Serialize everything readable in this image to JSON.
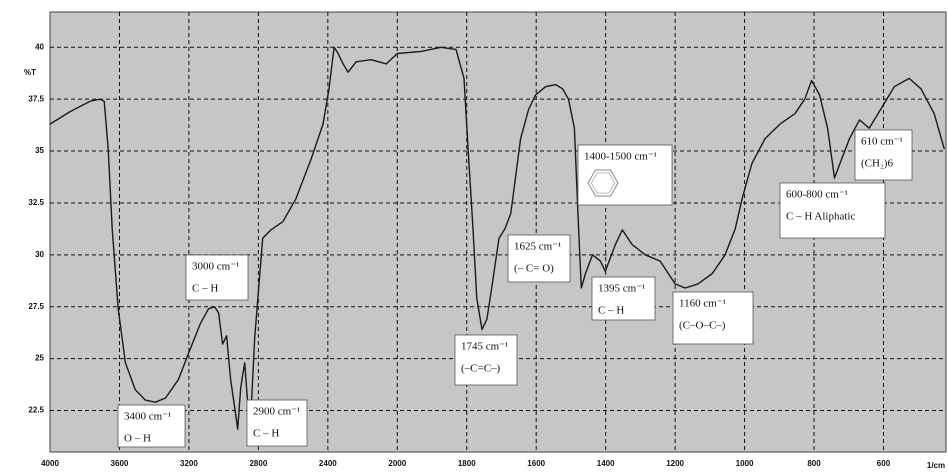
{
  "chart_data": {
    "type": "line",
    "y_label": "%T",
    "x_label": "1/cm",
    "color": "#1a1a1a",
    "grid": true,
    "xlim": [
      4000,
      420
    ],
    "ylim": [
      20.5,
      41.7
    ],
    "xticks": [
      4000,
      3600,
      3200,
      2800,
      2400,
      2000,
      1800,
      1600,
      1400,
      1200,
      1000,
      800,
      600
    ],
    "yticks": [
      22.5,
      25,
      27.5,
      30,
      32.5,
      35,
      37.5,
      40
    ],
    "x": [
      4000,
      3884,
      3769,
      3711,
      3688,
      3665,
      3642,
      3607,
      3566,
      3509,
      3451,
      3393,
      3335,
      3260,
      3191,
      3133,
      3087,
      3052,
      3029,
      3006,
      2983,
      2960,
      2936,
      2919,
      2902,
      2879,
      2861,
      2844,
      2821,
      2798,
      2775,
      2728,
      2659,
      2584,
      2497,
      2428,
      2393,
      2364,
      2341,
      2312,
      2283,
      2237,
      2150,
      2064,
      2000,
      1931,
      1874,
      1831,
      1808,
      1796,
      1782,
      1771,
      1756,
      1742,
      1728,
      1707,
      1690,
      1673,
      1645,
      1622,
      1602,
      1573,
      1544,
      1524,
      1507,
      1490,
      1478,
      1470,
      1458,
      1438,
      1415,
      1401,
      1390,
      1372,
      1352,
      1324,
      1286,
      1243,
      1200,
      1171,
      1134,
      1093,
      1056,
      1027,
      1007,
      979,
      941,
      898,
      855,
      827,
      807,
      784,
      761,
      741,
      721,
      698,
      669,
      641,
      612,
      569,
      526,
      492,
      454,
      425
    ],
    "values": [
      36.3,
      36.9,
      37.4,
      37.5,
      37.4,
      35.1,
      31.25,
      27.4,
      24.8,
      23.5,
      23.0,
      22.9,
      23.1,
      24.0,
      25.5,
      26.7,
      27.4,
      27.5,
      27.2,
      25.7,
      26.1,
      24.0,
      22.6,
      21.6,
      23.6,
      24.8,
      22.8,
      22.1,
      26.0,
      28.4,
      30.8,
      31.2,
      31.6,
      32.7,
      34.6,
      36.3,
      38.0,
      40.0,
      39.7,
      39.2,
      38.8,
      39.3,
      39.4,
      39.2,
      39.7,
      39.8,
      40.0,
      39.9,
      38.5,
      35.1,
      31.25,
      27.9,
      26.4,
      26.9,
      28.4,
      30.8,
      31.25,
      32.0,
      35.6,
      37.0,
      37.7,
      38.1,
      38.2,
      38.0,
      37.5,
      36.1,
      31.25,
      28.4,
      29.1,
      30.0,
      29.7,
      29.2,
      29.7,
      30.5,
      31.2,
      30.5,
      30.0,
      29.7,
      28.6,
      28.4,
      28.6,
      29.1,
      30.0,
      31.25,
      32.7,
      34.4,
      35.6,
      36.3,
      36.8,
      37.5,
      38.4,
      37.7,
      36.1,
      33.7,
      34.6,
      35.6,
      36.5,
      36.1,
      36.9,
      38.1,
      38.5,
      38.0,
      36.8,
      35.1
    ],
    "annotations": [
      {
        "lines": [
          "3400 cm⁻¹",
          "O – H"
        ]
      },
      {
        "lines": [
          "3000 cm⁻¹",
          "C – H"
        ]
      },
      {
        "lines": [
          "2900 cm⁻¹",
          "C – H"
        ]
      },
      {
        "lines": [
          "1625 cm⁻¹",
          "(– C= O)"
        ]
      },
      {
        "lines": [
          "1745 cm⁻¹",
          "(–C=C–)"
        ]
      },
      {
        "lines": [
          "1400-1500 cm⁻¹"
        ]
      },
      {
        "lines": [
          "1395 cm⁻¹",
          "C – H"
        ]
      },
      {
        "lines": [
          "1160 cm⁻¹",
          "(C–O–C–)"
        ]
      },
      {
        "lines": [
          "600-800 cm⁻¹",
          "C – H Aliphatic"
        ]
      },
      {
        "lines": [
          "610 cm⁻¹",
          "(CH₂)6"
        ]
      }
    ]
  }
}
